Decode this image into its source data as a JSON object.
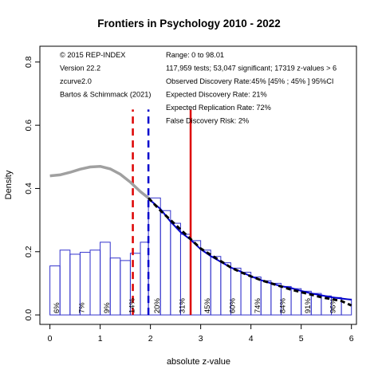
{
  "chart_data": {
    "type": "bar",
    "title": "Frontiers in Psychology 2010 - 2022",
    "xlabel": "absolute z-value",
    "ylabel": "Density",
    "xlim": [
      -0.2,
      6.1
    ],
    "ylim": [
      -0.03,
      0.85
    ],
    "x_ticks": [
      "0",
      "1",
      "2",
      "3",
      "4",
      "5",
      "6"
    ],
    "y_ticks": [
      "0.0",
      "0.2",
      "0.4",
      "0.6",
      "0.8"
    ],
    "bin_width": 0.2,
    "bins": [
      {
        "x0": 0.0,
        "x1": 0.2,
        "density": 0.155
      },
      {
        "x0": 0.2,
        "x1": 0.4,
        "density": 0.205
      },
      {
        "x0": 0.4,
        "x1": 0.6,
        "density": 0.192
      },
      {
        "x0": 0.6,
        "x1": 0.8,
        "density": 0.198
      },
      {
        "x0": 0.8,
        "x1": 1.0,
        "density": 0.205
      },
      {
        "x0": 1.0,
        "x1": 1.2,
        "density": 0.23
      },
      {
        "x0": 1.2,
        "x1": 1.4,
        "density": 0.18
      },
      {
        "x0": 1.4,
        "x1": 1.6,
        "density": 0.172
      },
      {
        "x0": 1.6,
        "x1": 1.8,
        "density": 0.195
      },
      {
        "x0": 1.8,
        "x1": 1.96,
        "density": 0.23
      },
      {
        "x0": 1.96,
        "x1": 2.2,
        "density": 0.37
      },
      {
        "x0": 2.2,
        "x1": 2.4,
        "density": 0.33
      },
      {
        "x0": 2.4,
        "x1": 2.6,
        "density": 0.29
      },
      {
        "x0": 2.6,
        "x1": 2.8,
        "density": 0.255
      },
      {
        "x0": 2.8,
        "x1": 3.0,
        "density": 0.235
      },
      {
        "x0": 3.0,
        "x1": 3.2,
        "density": 0.205
      },
      {
        "x0": 3.2,
        "x1": 3.4,
        "density": 0.185
      },
      {
        "x0": 3.4,
        "x1": 3.6,
        "density": 0.165
      },
      {
        "x0": 3.6,
        "x1": 3.8,
        "density": 0.148
      },
      {
        "x0": 3.8,
        "x1": 4.0,
        "density": 0.135
      },
      {
        "x0": 4.0,
        "x1": 4.2,
        "density": 0.12
      },
      {
        "x0": 4.2,
        "x1": 4.4,
        "density": 0.108
      },
      {
        "x0": 4.4,
        "x1": 4.6,
        "density": 0.1
      },
      {
        "x0": 4.6,
        "x1": 4.8,
        "density": 0.09
      },
      {
        "x0": 4.8,
        "x1": 5.0,
        "density": 0.083
      },
      {
        "x0": 5.0,
        "x1": 5.2,
        "density": 0.075
      },
      {
        "x0": 5.2,
        "x1": 5.4,
        "density": 0.068
      },
      {
        "x0": 5.4,
        "x1": 5.6,
        "density": 0.06
      },
      {
        "x0": 5.6,
        "x1": 5.8,
        "density": 0.055
      },
      {
        "x0": 5.8,
        "x1": 6.0,
        "density": 0.05
      }
    ],
    "fitted_curve_gray": {
      "x": [
        0.0,
        0.2,
        0.4,
        0.6,
        0.8,
        1.0,
        1.2,
        1.4,
        1.6,
        1.8,
        1.96
      ],
      "y": [
        0.44,
        0.443,
        0.451,
        0.461,
        0.468,
        0.47,
        0.462,
        0.445,
        0.42,
        0.39,
        0.37
      ]
    },
    "fitted_curve_black": {
      "x": [
        1.96,
        2.2,
        2.4,
        2.6,
        2.8,
        3.0,
        3.2,
        3.4,
        3.6,
        3.8,
        4.0,
        4.2,
        4.4,
        4.6,
        4.8,
        5.0,
        5.2,
        5.4,
        5.6,
        5.8,
        6.0
      ],
      "y": [
        0.37,
        0.33,
        0.3,
        0.27,
        0.24,
        0.21,
        0.19,
        0.17,
        0.15,
        0.135,
        0.122,
        0.11,
        0.1,
        0.09,
        0.08,
        0.072,
        0.064,
        0.056,
        0.05,
        0.044,
        0.03
      ]
    },
    "empirical_line_blue": {
      "x": [
        1.96,
        2.2,
        2.4,
        2.6,
        2.8,
        3.0,
        3.2,
        3.4,
        3.6,
        3.8,
        4.0,
        4.2,
        4.4,
        4.6,
        4.8,
        5.0,
        5.2,
        5.4,
        5.6,
        5.8,
        6.0
      ],
      "y": [
        0.368,
        0.335,
        0.295,
        0.262,
        0.238,
        0.208,
        0.186,
        0.168,
        0.15,
        0.137,
        0.122,
        0.11,
        0.1,
        0.091,
        0.085,
        0.076,
        0.068,
        0.062,
        0.056,
        0.052,
        0.048
      ]
    },
    "vertical_lines": [
      {
        "x": 1.65,
        "color": "#dd0000",
        "style": "dashed"
      },
      {
        "x": 1.96,
        "color": "#0000cc",
        "style": "dashed"
      },
      {
        "x": 2.8,
        "color": "#dd0000",
        "style": "solid"
      }
    ],
    "percent_labels": [
      {
        "x": 0.13,
        "text": "6%"
      },
      {
        "x": 0.63,
        "text": "7%"
      },
      {
        "x": 1.13,
        "text": "9%"
      },
      {
        "x": 1.63,
        "text": "14%"
      },
      {
        "x": 2.13,
        "text": "20%"
      },
      {
        "x": 2.63,
        "text": "31%"
      },
      {
        "x": 3.13,
        "text": "45%"
      },
      {
        "x": 3.63,
        "text": "60%"
      },
      {
        "x": 4.13,
        "text": "74%"
      },
      {
        "x": 4.63,
        "text": "84%"
      },
      {
        "x": 5.13,
        "text": "91%"
      },
      {
        "x": 5.63,
        "text": "96%"
      }
    ],
    "info_left": [
      "© 2015 REP-INDEX",
      "Version 22.2",
      "zcurve2.0",
      "Bartos & Schimmack (2021)"
    ],
    "info_right": [
      "Range: 0 to 98.01",
      "117,959 tests; 53,047 significant; 17319 z-values > 6",
      "Observed Discovery Rate:45% [45% ; 45% ] 95%CI",
      "Expected Discovery Rate: 21%",
      "Expected Replication Rate: 72%",
      "False Discovery Risk: 2%"
    ],
    "colors": {
      "bar_stroke": "#3333cc",
      "gray_curve": "#a0a0a0",
      "black_curve": "#000000",
      "blue_line": "#0000cc"
    }
  }
}
